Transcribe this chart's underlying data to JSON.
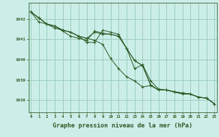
{
  "background_color": "#cceee8",
  "grid_color": "#99ccbb",
  "line_color": "#2d5a27",
  "xlabel": "Graphe pression niveau de la mer (hPa)",
  "xlabel_fontsize": 6.5,
  "xtick_labels": [
    "0",
    "1",
    "2",
    "3",
    "4",
    "5",
    "6",
    "7",
    "8",
    "9",
    "10",
    "11",
    "12",
    "13",
    "14",
    "15",
    "16",
    "17",
    "18",
    "19",
    "20",
    "21",
    "22",
    "23"
  ],
  "ytick_values": [
    1038,
    1039,
    1040,
    1041,
    1042
  ],
  "ylim": [
    1037.4,
    1042.8
  ],
  "xlim": [
    -0.3,
    23.3
  ],
  "series": [
    [
      1042.35,
      1042.05,
      1041.75,
      1041.65,
      1041.45,
      1041.35,
      1041.15,
      1041.05,
      1041.35,
      1041.25,
      1041.25,
      1041.15,
      1040.55,
      1039.95,
      1039.7,
      1038.75,
      1038.5,
      1038.5,
      1038.4,
      1038.35,
      1038.3,
      1038.15,
      1038.1,
      1037.82
    ],
    [
      1042.35,
      1041.85,
      1041.75,
      1041.55,
      1041.45,
      1041.35,
      1041.15,
      1041.05,
      1040.95,
      1040.75,
      1040.05,
      1039.55,
      1039.15,
      1038.95,
      1038.65,
      1038.72,
      1038.5,
      1038.5,
      1038.4,
      1038.35,
      1038.3,
      1038.15,
      1038.1,
      1037.82
    ],
    [
      1042.35,
      1042.05,
      1041.75,
      1041.65,
      1041.45,
      1041.35,
      1041.15,
      1040.85,
      1040.85,
      1041.45,
      1041.35,
      1041.25,
      1040.55,
      1039.55,
      1039.75,
      1038.95,
      1038.55,
      1038.5,
      1038.42,
      1038.35,
      1038.3,
      1038.15,
      1038.1,
      1037.82
    ],
    [
      1042.35,
      1042.05,
      1041.75,
      1041.65,
      1041.4,
      1041.15,
      1041.05,
      1040.95,
      1041.4,
      1041.3,
      1041.25,
      1041.15,
      1040.55,
      1039.95,
      1039.7,
      1038.75,
      1038.5,
      1038.5,
      1038.4,
      1038.3,
      1038.3,
      1038.15,
      1038.1,
      1037.82
    ]
  ]
}
